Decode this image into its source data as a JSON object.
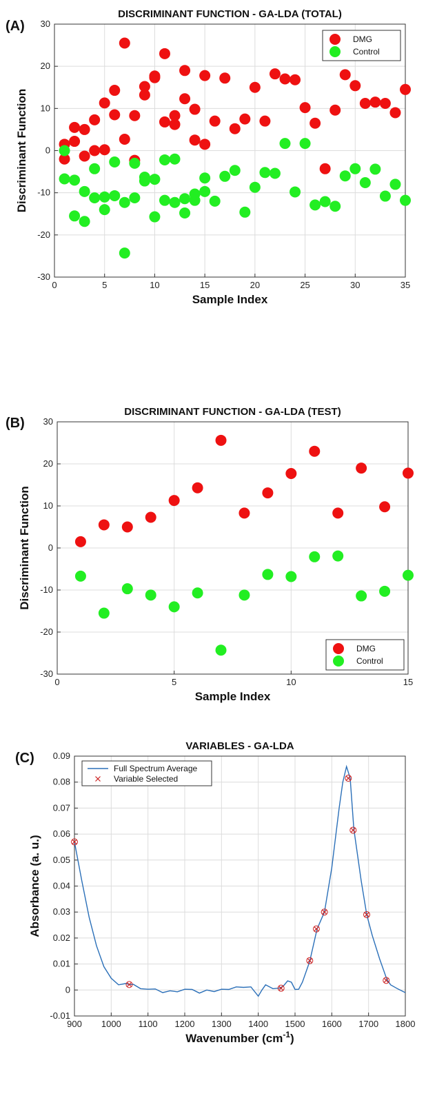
{
  "chart_data": [
    {
      "type": "scatter",
      "panel_label": "(A)",
      "title": "DISCRIMINANT FUNCTION - GA-LDA (TOTAL)",
      "xlabel": "Sample Index",
      "ylabel": "Discriminant Function",
      "xlim": [
        0,
        35
      ],
      "ylim": [
        -30,
        30
      ],
      "xticks": [
        0,
        5,
        10,
        15,
        20,
        25,
        30,
        35
      ],
      "yticks": [
        -30,
        -20,
        -10,
        0,
        10,
        20,
        30
      ],
      "grid": true,
      "legend_position": "top-right",
      "series": [
        {
          "name": "DMG",
          "color": "#ee1111",
          "points": [
            [
              1,
              1.5
            ],
            [
              1,
              -2
            ],
            [
              2,
              5.5
            ],
            [
              2,
              2.2
            ],
            [
              3,
              5
            ],
            [
              3,
              -1.3
            ],
            [
              4,
              7.3
            ],
            [
              4,
              0
            ],
            [
              5,
              11.3
            ],
            [
              5,
              0.2
            ],
            [
              6,
              14.3
            ],
            [
              6,
              8.5
            ],
            [
              7,
              25.5
            ],
            [
              7,
              2.7
            ],
            [
              8,
              8.3
            ],
            [
              8,
              -2.3
            ],
            [
              9,
              15.2
            ],
            [
              9,
              13.2
            ],
            [
              10,
              17.7
            ],
            [
              10,
              17.3
            ],
            [
              11,
              23
            ],
            [
              11,
              6.8
            ],
            [
              12,
              8.3
            ],
            [
              12,
              6.2
            ],
            [
              13,
              19
            ],
            [
              13,
              12.3
            ],
            [
              14,
              9.8
            ],
            [
              14,
              2.5
            ],
            [
              15,
              17.8
            ],
            [
              15,
              1.5
            ],
            [
              16,
              7
            ],
            [
              17,
              17.2
            ],
            [
              18,
              5.2
            ],
            [
              19,
              7.5
            ],
            [
              20,
              15
            ],
            [
              21,
              7
            ],
            [
              22,
              18.2
            ],
            [
              23,
              17
            ],
            [
              24,
              16.8
            ],
            [
              25,
              10.2
            ],
            [
              26,
              6.5
            ],
            [
              27,
              -4.3
            ],
            [
              28,
              9.6
            ],
            [
              29,
              18
            ],
            [
              30,
              15.4
            ],
            [
              31,
              11.2
            ],
            [
              32,
              11.5
            ],
            [
              33,
              11.2
            ],
            [
              34,
              9
            ],
            [
              35,
              14.5
            ]
          ]
        },
        {
          "name": "Control",
          "color": "#22ee22",
          "points": [
            [
              1,
              0
            ],
            [
              1,
              -6.7
            ],
            [
              2,
              -7
            ],
            [
              2,
              -15.5
            ],
            [
              3,
              -9.7
            ],
            [
              3,
              -16.8
            ],
            [
              4,
              -4.3
            ],
            [
              4,
              -11.2
            ],
            [
              5,
              -11
            ],
            [
              5,
              -14
            ],
            [
              6,
              -2.7
            ],
            [
              6,
              -10.7
            ],
            [
              7,
              -12.3
            ],
            [
              7,
              -24.3
            ],
            [
              8,
              -3
            ],
            [
              8,
              -11.2
            ],
            [
              9,
              -6.3
            ],
            [
              9,
              -7.2
            ],
            [
              10,
              -6.8
            ],
            [
              10,
              -15.7
            ],
            [
              11,
              -2.2
            ],
            [
              11,
              -11.8
            ],
            [
              12,
              -2
            ],
            [
              12,
              -12.3
            ],
            [
              13,
              -11.4
            ],
            [
              13,
              -14.8
            ],
            [
              14,
              -10.3
            ],
            [
              14,
              -11.8
            ],
            [
              15,
              -6.5
            ],
            [
              15,
              -9.7
            ],
            [
              16,
              -12
            ],
            [
              17,
              -6.1
            ],
            [
              18,
              -4.7
            ],
            [
              19,
              -14.6
            ],
            [
              20,
              -8.7
            ],
            [
              21,
              -5.2
            ],
            [
              22,
              -5.4
            ],
            [
              23,
              1.7
            ],
            [
              24,
              -9.8
            ],
            [
              25,
              1.7
            ],
            [
              26,
              -12.9
            ],
            [
              27,
              -12.1
            ],
            [
              28,
              -13.2
            ],
            [
              29,
              -6
            ],
            [
              30,
              -4.3
            ],
            [
              31,
              -7.6
            ],
            [
              32,
              -4.4
            ],
            [
              33,
              -10.8
            ],
            [
              34,
              -8
            ],
            [
              35,
              -11.8
            ]
          ]
        }
      ]
    },
    {
      "type": "scatter",
      "panel_label": "(B)",
      "title": "DISCRIMINANT FUNCTION - GA-LDA (TEST)",
      "xlabel": "Sample Index",
      "ylabel": "Discriminant Function",
      "xlim": [
        0,
        15
      ],
      "ylim": [
        -30,
        30
      ],
      "xticks": [
        0,
        5,
        10,
        15
      ],
      "yticks": [
        -30,
        -20,
        -10,
        0,
        10,
        20,
        30
      ],
      "grid": true,
      "legend_position": "bottom-right",
      "series": [
        {
          "name": "DMG",
          "color": "#ee1111",
          "points": [
            [
              1,
              1.5
            ],
            [
              2,
              5.5
            ],
            [
              3,
              5
            ],
            [
              4,
              7.3
            ],
            [
              5,
              11.3
            ],
            [
              6,
              14.3
            ],
            [
              7,
              25.6
            ],
            [
              8,
              8.3
            ],
            [
              9,
              13.1
            ],
            [
              10,
              17.7
            ],
            [
              11,
              23
            ],
            [
              12,
              8.3
            ],
            [
              13,
              19
            ],
            [
              14,
              9.8
            ],
            [
              15,
              17.8
            ]
          ]
        },
        {
          "name": "Control",
          "color": "#22ee22",
          "points": [
            [
              1,
              -6.7
            ],
            [
              2,
              -15.5
            ],
            [
              3,
              -9.7
            ],
            [
              4,
              -11.2
            ],
            [
              5,
              -14
            ],
            [
              6,
              -10.7
            ],
            [
              7,
              -24.3
            ],
            [
              8,
              -11.2
            ],
            [
              9,
              -6.3
            ],
            [
              10,
              -6.8
            ],
            [
              11,
              -2.1
            ],
            [
              12,
              -1.9
            ],
            [
              13,
              -11.4
            ],
            [
              14,
              -10.3
            ],
            [
              15,
              -6.5
            ]
          ]
        }
      ]
    },
    {
      "type": "line",
      "panel_label": "(C)",
      "title": "VARIABLES - GA-LDA",
      "xlabel": "Wavenumber (cm",
      "xlabel_sup": "-1",
      "xlabel_suffix": ")",
      "ylabel": "Absorbance (a. u.)",
      "xlim": [
        900,
        1800
      ],
      "ylim": [
        -0.01,
        0.09
      ],
      "xticks": [
        900,
        1000,
        1100,
        1200,
        1300,
        1400,
        1500,
        1600,
        1700,
        1800
      ],
      "yticks": [
        -0.01,
        0,
        0.01,
        0.02,
        0.03,
        0.04,
        0.05,
        0.06,
        0.07,
        0.08,
        0.09
      ],
      "grid": true,
      "legend_position": "top-left",
      "series": [
        {
          "name": "Full Spectrum Average",
          "color": "#2a6fb8",
          "x": [
            900,
            920,
            940,
            960,
            980,
            1000,
            1020,
            1040,
            1050,
            1060,
            1080,
            1100,
            1120,
            1140,
            1160,
            1180,
            1200,
            1220,
            1240,
            1260,
            1280,
            1300,
            1320,
            1340,
            1360,
            1380,
            1400,
            1410,
            1420,
            1440,
            1460,
            1470,
            1480,
            1490,
            1500,
            1510,
            1520,
            1540,
            1560,
            1580,
            1600,
            1620,
            1630,
            1640,
            1650,
            1660,
            1680,
            1695,
            1710,
            1730,
            1750,
            1760,
            1780,
            1800
          ],
          "y": [
            0.057,
            0.042,
            0.028,
            0.017,
            0.009,
            0.0045,
            0.002,
            0.0025,
            0.0021,
            0.0022,
            0.0005,
            0.0003,
            0.0004,
            -0.001,
            -0.0003,
            -0.0007,
            0.0003,
            0.0002,
            -0.0012,
            0,
            -0.0006,
            0.0003,
            0.0002,
            0.0012,
            0.001,
            0.0012,
            -0.0024,
            0.0,
            0.002,
            0.0005,
            0.0008,
            0.0018,
            0.0035,
            0.003,
            0.0002,
            0.0003,
            0.003,
            0.011,
            0.0235,
            0.03,
            0.047,
            0.07,
            0.08,
            0.086,
            0.0815,
            0.062,
            0.042,
            0.029,
            0.021,
            0.012,
            0.004,
            0.002,
            0.0004,
            -0.001
          ]
        },
        {
          "name": "Variable Selected",
          "color": "#cc2222",
          "marker": "x",
          "points": [
            [
              900,
              0.057
            ],
            [
              1049,
              0.0021
            ],
            [
              1462,
              0.0007
            ],
            [
              1540,
              0.0113
            ],
            [
              1558,
              0.0235
            ],
            [
              1580,
              0.03
            ],
            [
              1645,
              0.0815
            ],
            [
              1658,
              0.0615
            ],
            [
              1695,
              0.029
            ],
            [
              1748,
              0.0037
            ]
          ]
        }
      ]
    }
  ]
}
